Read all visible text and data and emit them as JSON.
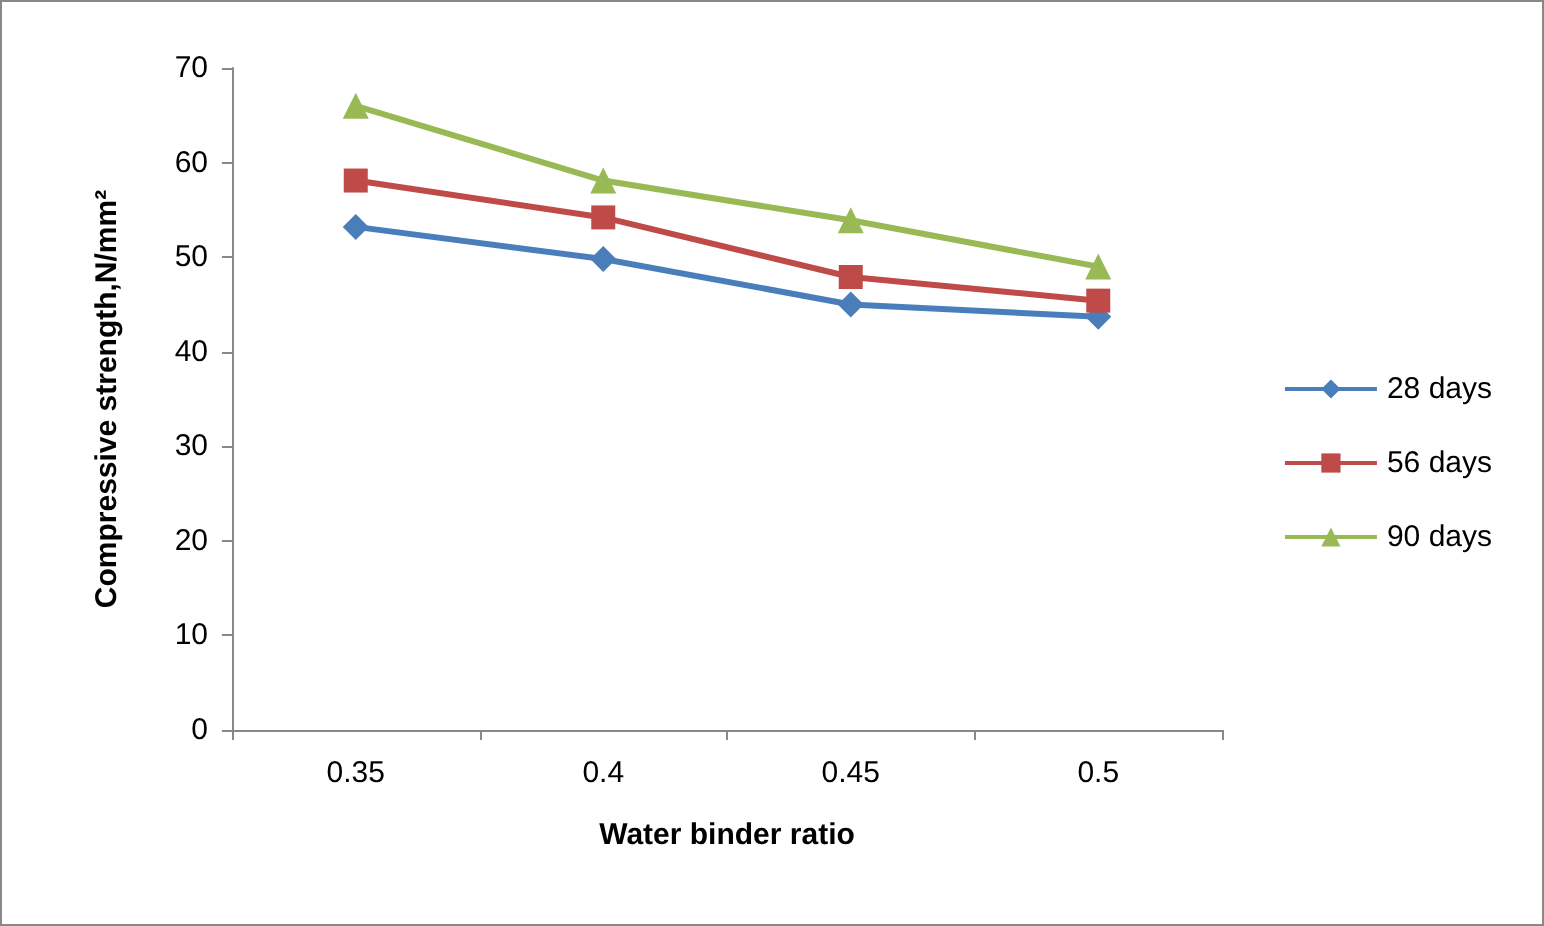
{
  "chart_data": {
    "type": "line",
    "xlabel": "Water binder ratio",
    "ylabel": "Compressive strength,N/mm²",
    "categories": [
      "0.35",
      "0.4",
      "0.45",
      "0.5"
    ],
    "series": [
      {
        "name": "28 days",
        "color": "#4a7ebb",
        "marker": "diamond",
        "values": [
          53.2,
          49.8,
          45,
          43.7
        ]
      },
      {
        "name": "56 days",
        "color": "#be4b48",
        "marker": "square",
        "values": [
          58.1,
          54.2,
          47.9,
          45.4
        ]
      },
      {
        "name": "90 days",
        "color": "#98b954",
        "marker": "triangle",
        "values": [
          66,
          58.1,
          53.9,
          49
        ]
      }
    ],
    "ylim": [
      0,
      70
    ],
    "yticks": [
      0,
      10,
      20,
      30,
      40,
      50,
      60,
      70
    ],
    "grid": false,
    "legend": "right"
  }
}
